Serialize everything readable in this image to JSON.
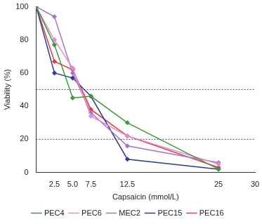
{
  "chart_data": {
    "type": "line",
    "x_label": "Capsaicin (mmol/L)",
    "y_label": "Viability (%)",
    "x": [
      0,
      2.5,
      5,
      7.5,
      12.5,
      25
    ],
    "series": [
      {
        "name": "PEC4",
        "color": "#3c9a3c",
        "values": [
          100,
          77,
          45,
          46,
          30,
          2
        ]
      },
      {
        "name": "PEC6",
        "color": "#e58ad0",
        "values": [
          100,
          80,
          63,
          34,
          22,
          5
        ]
      },
      {
        "name": "MEC2",
        "color": "#a374cf",
        "values": [
          100,
          94,
          60,
          36,
          16,
          6
        ]
      },
      {
        "name": "PEC15",
        "color": "#2e3a94",
        "values": [
          100,
          60,
          57,
          46,
          8,
          2
        ]
      },
      {
        "name": "PEC16",
        "color": "#e33b3b",
        "values": [
          100,
          67,
          62,
          38,
          22,
          3
        ]
      }
    ],
    "hlines": [
      50,
      20
    ],
    "xlim": [
      0,
      30
    ],
    "xticks": [
      2.5,
      {
        "value": 5,
        "label": "5.0"
      },
      {
        "value": 7.5,
        "label": "7.5"
      },
      12.5,
      25,
      30
    ],
    "ylim": [
      0,
      100
    ],
    "yticks": [
      0,
      20,
      40,
      60,
      80,
      100
    ],
    "grid": false,
    "legend": "bottom",
    "marker": "diamond",
    "line_style": "solid"
  }
}
